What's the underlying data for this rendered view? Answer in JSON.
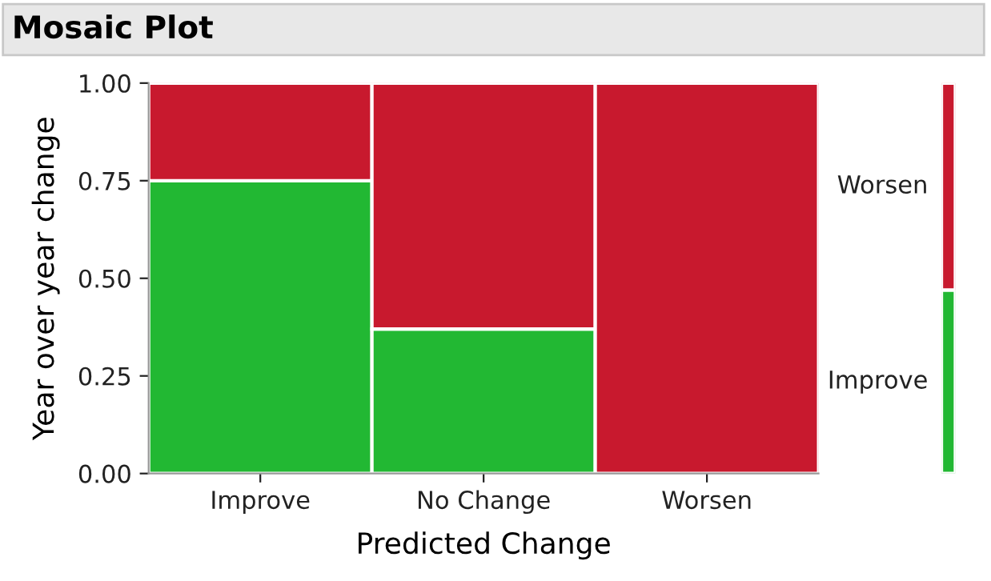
{
  "chart_data": [
    {
      "type": "bar",
      "title": "Mosaic Plot",
      "xlabel": "Predicted Change",
      "ylabel": "Year over year change",
      "stacked": true,
      "categories": [
        "Improve",
        "No Change",
        "Worsen"
      ],
      "ylim": [
        0,
        1
      ],
      "yticks": [
        {
          "value": 0,
          "label": "0.00"
        },
        {
          "value": 0.25,
          "label": "0.25"
        },
        {
          "value": 0.5,
          "label": "0.50"
        },
        {
          "value": 0.75,
          "label": "0.75"
        },
        {
          "value": 1,
          "label": "1.00"
        }
      ],
      "series": [
        {
          "color": "#22b833",
          "values": [
            0.75,
            0.37,
            0
          ]
        },
        {
          "color": "#c8192e",
          "values": [
            0.25,
            0.63,
            1
          ]
        }
      ]
    },
    {
      "type": "bar",
      "stacked": true,
      "categories": [
        null
      ],
      "ylim": [
        0,
        1
      ],
      "tick_labels": false,
      "series": [
        {
          "name": "Improve",
          "color": "#22b833",
          "values": [
            0.47
          ]
        },
        {
          "name": "Worsen",
          "color": "#c8192e",
          "values": [
            0.53
          ]
        }
      ]
    }
  ]
}
